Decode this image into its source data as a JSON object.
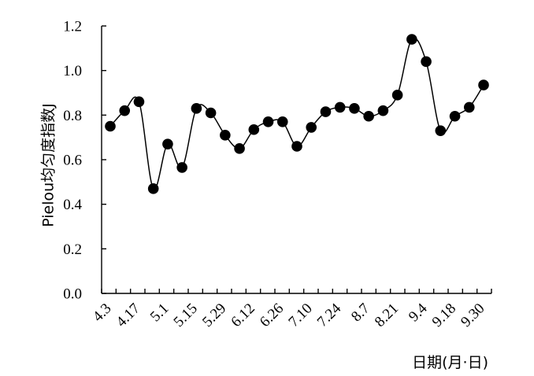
{
  "chart_data": {
    "type": "line",
    "title": "",
    "ylabel": "Pielou均匀度指数J",
    "xlabel": "日期(月·日)",
    "ylim": [
      0,
      1.2
    ],
    "yticks": [
      "0.0",
      "0.2",
      "0.4",
      "0.6",
      "0.8",
      "1.0",
      "1.2"
    ],
    "x_tick_labels": [
      "4.3",
      "4.17",
      "5.1",
      "5.15",
      "5.29",
      "6.12",
      "6.26",
      "7.10",
      "7.24",
      "8.7",
      "8.21",
      "9.4",
      "9.18",
      "9.30"
    ],
    "grid": false,
    "legend": "none",
    "marker_color": "#000000",
    "series": [
      {
        "values": [
          0.75,
          0.82,
          0.86,
          0.47,
          0.67,
          0.565,
          0.83,
          0.81,
          0.71,
          0.65,
          0.735,
          0.77,
          0.77,
          0.66,
          0.745,
          0.815,
          0.835,
          0.83,
          0.795,
          0.82,
          0.89,
          1.14,
          1.04,
          0.73,
          0.795,
          0.835,
          0.935
        ]
      }
    ]
  }
}
